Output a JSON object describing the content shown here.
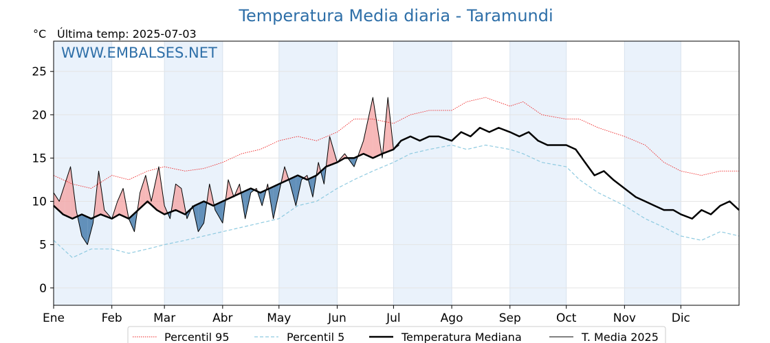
{
  "chart_data": {
    "type": "line",
    "title": "Temperatura Media diaria - Taramundi",
    "unit_label": "°C",
    "last_temp_label": "Última temp: 2025-07-03",
    "watermark": "WWW.EMBALSES.NET",
    "ylim": [
      -2,
      28.5
    ],
    "yticks": [
      0,
      5,
      10,
      15,
      20,
      25
    ],
    "xlim": [
      0,
      365
    ],
    "months": [
      "Ene",
      "Feb",
      "Mar",
      "Abr",
      "May",
      "Jun",
      "Jul",
      "Ago",
      "Sep",
      "Oct",
      "Nov",
      "Dic"
    ],
    "month_start_days": [
      0,
      31,
      59,
      90,
      120,
      151,
      181,
      212,
      243,
      273,
      304,
      334
    ],
    "grid": true,
    "legend_position": "bottom",
    "colors": {
      "p95": "#ee2222",
      "p5": "#8ecae0",
      "median": "#000000",
      "current": "#000000",
      "above": "#f4a0a0",
      "below": "#4a7fae",
      "band": "#eaf2fb"
    },
    "series": [
      {
        "name": "Percentil 95",
        "style": "dotted",
        "x": [
          0,
          10,
          20,
          31,
          40,
          50,
          59,
          70,
          80,
          90,
          100,
          110,
          120,
          130,
          140,
          151,
          160,
          170,
          181,
          190,
          200,
          212,
          220,
          230,
          243,
          250,
          260,
          273,
          280,
          290,
          304,
          315,
          325,
          334,
          345,
          355,
          365
        ],
        "values": [
          13.0,
          12.0,
          11.5,
          13.0,
          12.5,
          13.5,
          14.0,
          13.5,
          13.8,
          14.5,
          15.5,
          16.0,
          17.0,
          17.5,
          17.0,
          18.0,
          19.5,
          19.5,
          19.0,
          20.0,
          20.5,
          20.5,
          21.5,
          22.0,
          21.0,
          21.5,
          20.0,
          19.5,
          19.5,
          18.5,
          17.5,
          16.5,
          14.5,
          13.5,
          13.0,
          13.5,
          13.5
        ]
      },
      {
        "name": "Percentil 5",
        "style": "dashed",
        "x": [
          0,
          10,
          20,
          31,
          40,
          50,
          59,
          70,
          80,
          90,
          100,
          110,
          120,
          130,
          140,
          151,
          160,
          170,
          181,
          190,
          200,
          212,
          220,
          230,
          243,
          250,
          260,
          273,
          280,
          290,
          304,
          315,
          325,
          334,
          345,
          355,
          365
        ],
        "values": [
          5.5,
          3.5,
          4.5,
          4.5,
          4.0,
          4.5,
          5.0,
          5.5,
          6.0,
          6.5,
          7.0,
          7.5,
          8.0,
          9.5,
          10.0,
          11.5,
          12.5,
          13.5,
          14.5,
          15.5,
          16.0,
          16.5,
          16.0,
          16.5,
          16.0,
          15.5,
          14.5,
          14.0,
          12.5,
          11.0,
          9.5,
          8.0,
          7.0,
          6.0,
          5.5,
          6.5,
          6.0
        ]
      },
      {
        "name": "Temperatura Mediana",
        "style": "solid-thick",
        "x": [
          0,
          5,
          10,
          15,
          20,
          25,
          31,
          35,
          40,
          45,
          50,
          55,
          59,
          65,
          70,
          75,
          80,
          85,
          90,
          95,
          100,
          105,
          110,
          115,
          120,
          125,
          130,
          135,
          140,
          145,
          151,
          155,
          160,
          165,
          170,
          175,
          181,
          185,
          190,
          195,
          200,
          205,
          212,
          217,
          222,
          227,
          232,
          237,
          243,
          248,
          253,
          258,
          263,
          268,
          273,
          278,
          283,
          288,
          293,
          298,
          304,
          310,
          315,
          320,
          325,
          330,
          334,
          340,
          345,
          350,
          355,
          360,
          365
        ],
        "values": [
          9.5,
          8.5,
          8.0,
          8.5,
          8.0,
          8.5,
          8.0,
          8.5,
          8.0,
          9.0,
          10.0,
          9.0,
          8.5,
          9.0,
          8.5,
          9.5,
          10.0,
          9.5,
          10.0,
          10.5,
          11.0,
          11.5,
          11.0,
          11.5,
          12.0,
          12.5,
          13.0,
          12.5,
          13.0,
          14.0,
          14.5,
          15.0,
          15.0,
          15.5,
          15.0,
          15.5,
          16.0,
          17.0,
          17.5,
          17.0,
          17.5,
          17.5,
          17.0,
          18.0,
          17.5,
          18.5,
          18.0,
          18.5,
          18.0,
          17.5,
          18.0,
          17.0,
          16.5,
          16.5,
          16.5,
          16.0,
          14.5,
          13.0,
          13.5,
          12.5,
          11.5,
          10.5,
          10.0,
          9.5,
          9.0,
          9.0,
          8.5,
          8.0,
          9.0,
          8.5,
          9.5,
          10.0,
          9.0
        ]
      },
      {
        "name": "T. Media 2025",
        "style": "solid-thin",
        "x": [
          0,
          3,
          6,
          9,
          12,
          15,
          18,
          21,
          24,
          27,
          31,
          34,
          37,
          40,
          43,
          46,
          49,
          52,
          56,
          59,
          62,
          65,
          68,
          71,
          74,
          77,
          80,
          83,
          86,
          90,
          93,
          96,
          99,
          102,
          105,
          108,
          111,
          114,
          117,
          120,
          123,
          126,
          129,
          132,
          135,
          138,
          141,
          144,
          147,
          151,
          155,
          160,
          165,
          170,
          175,
          178,
          181,
          184
        ],
        "values": [
          11.0,
          10.0,
          12.0,
          14.0,
          9.0,
          6.0,
          5.0,
          7.5,
          13.5,
          9.0,
          8.0,
          10.0,
          11.5,
          8.0,
          6.5,
          11.0,
          13.0,
          10.0,
          14.0,
          9.5,
          8.0,
          12.0,
          11.5,
          8.0,
          9.5,
          6.5,
          7.5,
          12.0,
          9.0,
          7.5,
          12.5,
          10.5,
          12.0,
          8.0,
          11.0,
          11.5,
          9.5,
          12.0,
          8.0,
          11.0,
          14.0,
          12.0,
          9.5,
          12.5,
          13.0,
          10.5,
          14.5,
          12.0,
          17.5,
          14.5,
          15.5,
          14.0,
          17.0,
          22.0,
          15.0,
          22.0,
          16.0,
          16.5
        ]
      }
    ]
  }
}
